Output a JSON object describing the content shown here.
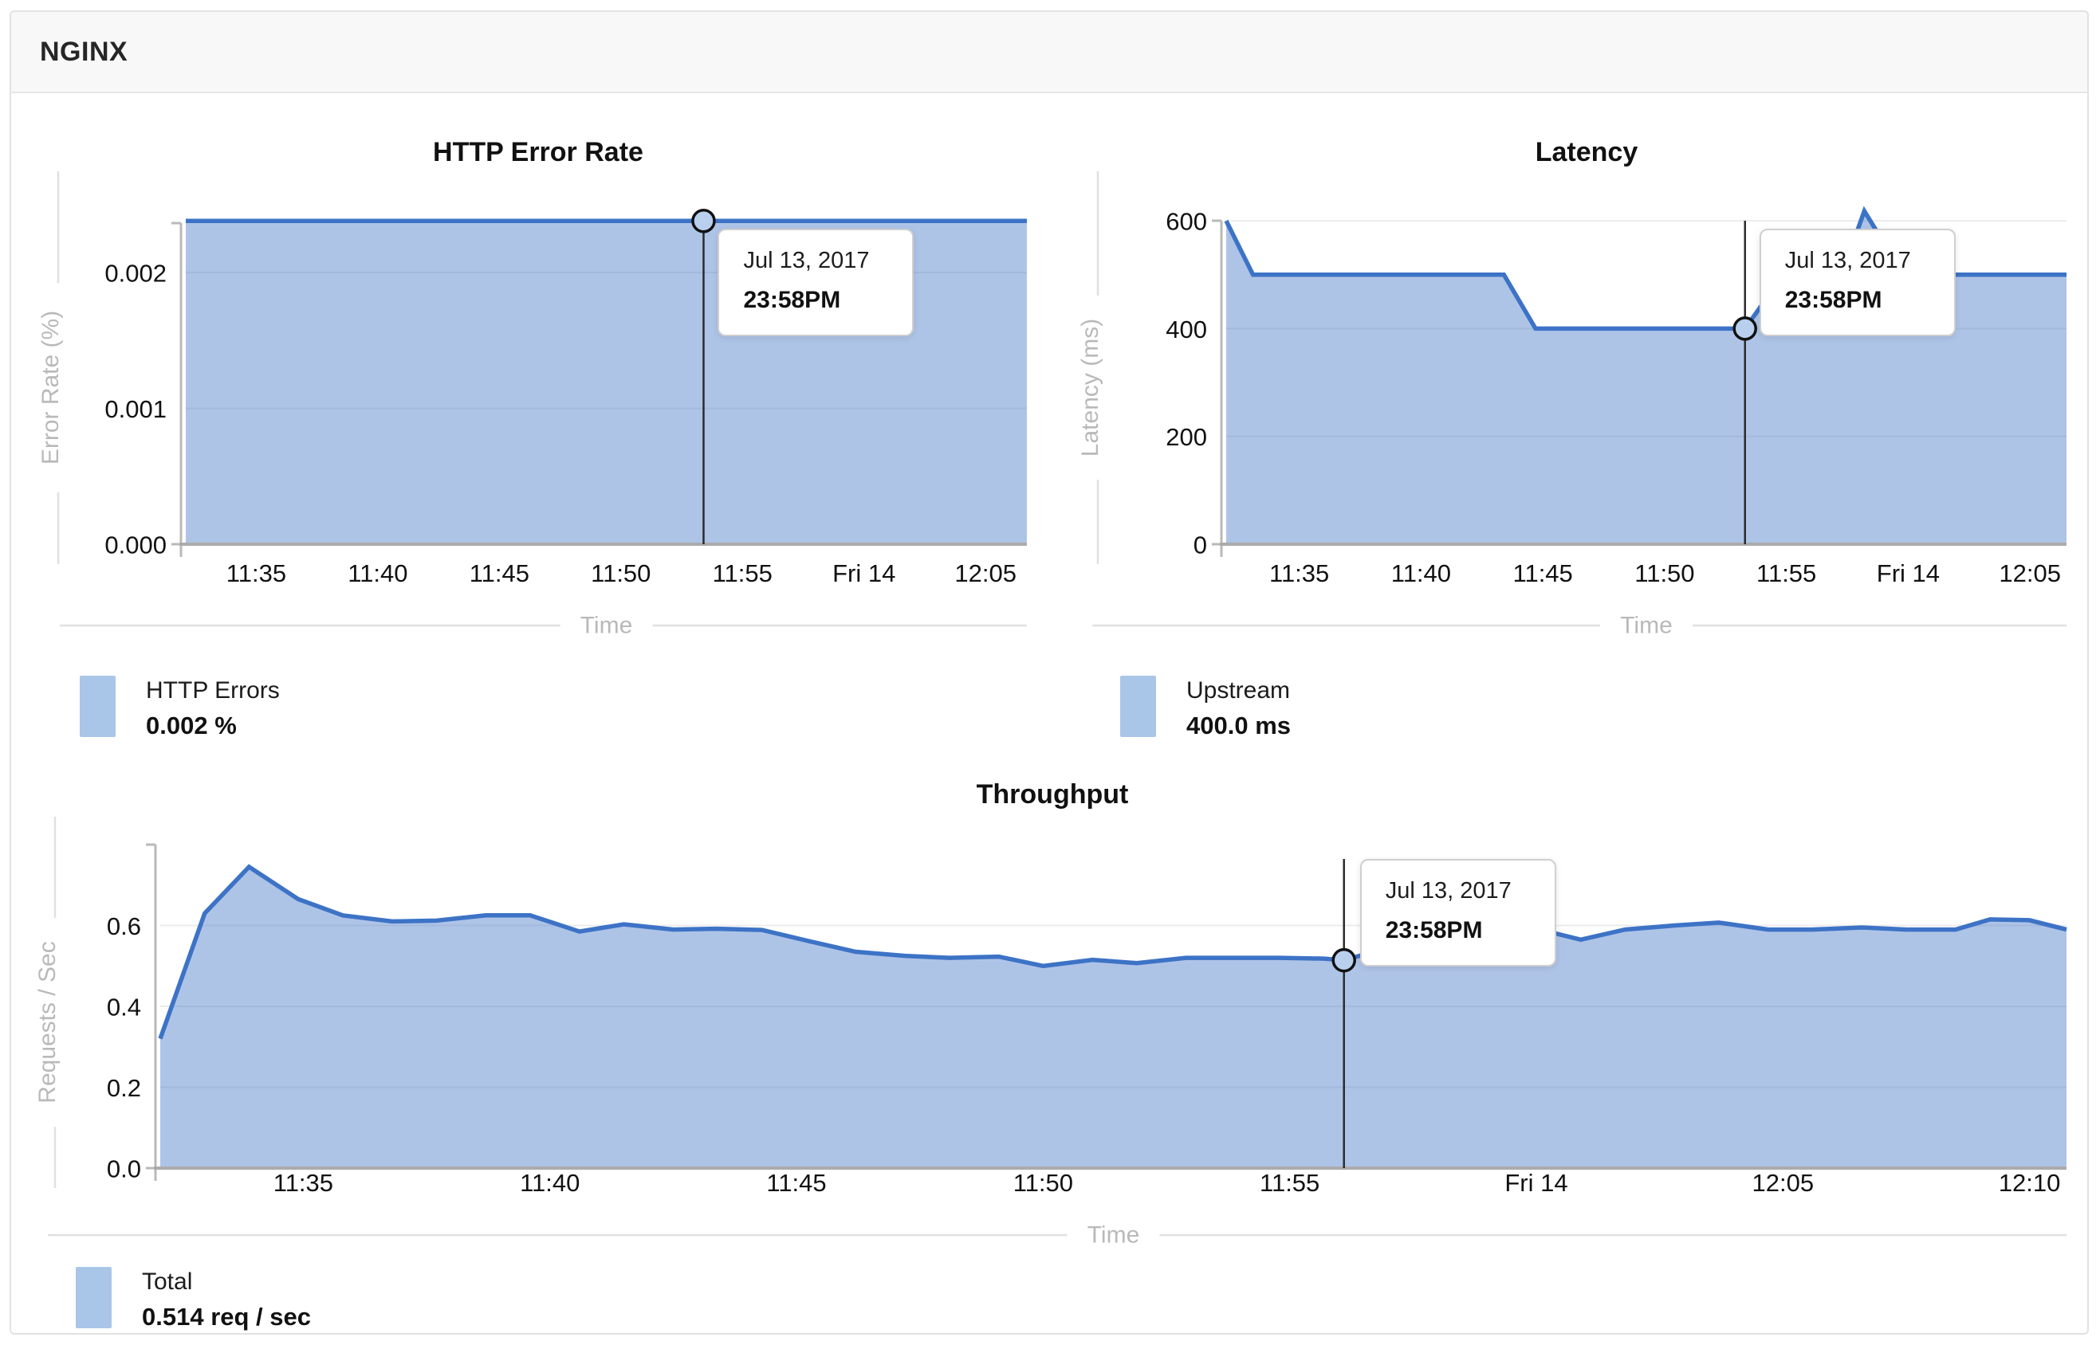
{
  "header": {
    "title": "NGINX"
  },
  "tooltip": {
    "date": "Jul 13, 2017",
    "time": "23:58PM"
  },
  "chart_data": {
    "type": "area",
    "colors": {
      "line": "#3d73c6",
      "fill": "#3d73c6",
      "fill_opacity": 0.42,
      "grid": "#ececec",
      "baseline": "#ababab",
      "axis_tick": "#b9b9b9",
      "muted_text": "#b9b9b9",
      "text": "#111111",
      "marker_line": "#2b2b2b",
      "marker_fill": "#b8d0ee"
    },
    "charts": [
      {
        "id": "http-error-rate",
        "title": "HTTP Error Rate",
        "xlabel": "Time",
        "ylabel": "Error Rate (%)",
        "x_domain": [
          2.1,
          36.7
        ],
        "y_domain": [
          0,
          0.00254
        ],
        "x_ticks": [
          {
            "v": 5,
            "label": "11:35"
          },
          {
            "v": 10,
            "label": "11:40"
          },
          {
            "v": 15,
            "label": "11:45"
          },
          {
            "v": 20,
            "label": "11:50"
          },
          {
            "v": 25,
            "label": "11:55"
          },
          {
            "v": 30,
            "label": "Fri 14"
          },
          {
            "v": 35,
            "label": "12:05"
          }
        ],
        "y_ticks": [
          {
            "v": 0,
            "label": "0.000"
          },
          {
            "v": 0.001,
            "label": "0.001"
          },
          {
            "v": 0.002,
            "label": "0.002"
          }
        ],
        "points": [
          [
            2.1,
            0.00238
          ],
          [
            36.7,
            0.00238
          ]
        ],
        "marker": {
          "x": 23.4,
          "y": 0.00238
        },
        "legend": {
          "label": "HTTP Errors",
          "value": "0.002 %"
        }
      },
      {
        "id": "latency",
        "title": "Latency",
        "xlabel": "Time",
        "ylabel": "Latency (ms)",
        "x_domain": [
          2.0,
          36.5
        ],
        "y_domain": [
          0,
          640
        ],
        "x_ticks": [
          {
            "v": 5,
            "label": "11:35"
          },
          {
            "v": 10,
            "label": "11:40"
          },
          {
            "v": 15,
            "label": "11:45"
          },
          {
            "v": 20,
            "label": "11:50"
          },
          {
            "v": 25,
            "label": "11:55"
          },
          {
            "v": 30,
            "label": "Fri 14"
          },
          {
            "v": 35,
            "label": "12:05"
          }
        ],
        "y_ticks": [
          {
            "v": 0,
            "label": "0"
          },
          {
            "v": 200,
            "label": "200"
          },
          {
            "v": 400,
            "label": "400"
          },
          {
            "v": 600,
            "label": "600"
          }
        ],
        "points": [
          [
            2.0,
            600
          ],
          [
            3.1,
            500
          ],
          [
            13.4,
            500
          ],
          [
            14.7,
            400
          ],
          [
            23.3,
            400
          ],
          [
            24.8,
            495
          ],
          [
            26.6,
            415
          ],
          [
            28.2,
            618
          ],
          [
            29.8,
            500
          ],
          [
            36.5,
            500
          ]
        ],
        "marker": {
          "x": 23.3,
          "y": 400
        },
        "legend": {
          "label": "Upstream",
          "value": "400.0 ms"
        }
      },
      {
        "id": "throughput",
        "title": "Throughput",
        "xlabel": "Time",
        "ylabel": "Requests / Sec",
        "x_domain": [
          2.1,
          40.75
        ],
        "y_domain": [
          0,
          0.8
        ],
        "x_ticks": [
          {
            "v": 5,
            "label": "11:35"
          },
          {
            "v": 10,
            "label": "11:40"
          },
          {
            "v": 15,
            "label": "11:45"
          },
          {
            "v": 20,
            "label": "11:50"
          },
          {
            "v": 25,
            "label": "11:55"
          },
          {
            "v": 30,
            "label": "Fri 14"
          },
          {
            "v": 35,
            "label": "12:05"
          },
          {
            "v": 40,
            "label": "12:10"
          }
        ],
        "y_ticks": [
          {
            "v": 0,
            "label": "0.0"
          },
          {
            "v": 0.2,
            "label": "0.2"
          },
          {
            "v": 0.4,
            "label": "0.4"
          },
          {
            "v": 0.6,
            "label": "0.6"
          }
        ],
        "points": [
          [
            2.1,
            0.32
          ],
          [
            3.0,
            0.63
          ],
          [
            3.9,
            0.745
          ],
          [
            4.9,
            0.665
          ],
          [
            5.8,
            0.625
          ],
          [
            6.8,
            0.61
          ],
          [
            7.7,
            0.612
          ],
          [
            8.7,
            0.625
          ],
          [
            9.6,
            0.625
          ],
          [
            10.6,
            0.585
          ],
          [
            11.5,
            0.603
          ],
          [
            12.5,
            0.59
          ],
          [
            13.4,
            0.592
          ],
          [
            14.3,
            0.589
          ],
          [
            15.3,
            0.56
          ],
          [
            16.2,
            0.535
          ],
          [
            17.2,
            0.525
          ],
          [
            18.1,
            0.52
          ],
          [
            19.1,
            0.523
          ],
          [
            20.0,
            0.5
          ],
          [
            21.0,
            0.515
          ],
          [
            21.9,
            0.507
          ],
          [
            22.9,
            0.52
          ],
          [
            23.8,
            0.52
          ],
          [
            24.8,
            0.52
          ],
          [
            25.7,
            0.518
          ],
          [
            26.1,
            0.514
          ],
          [
            27.0,
            0.545
          ],
          [
            28.0,
            0.59
          ],
          [
            29.0,
            0.595
          ],
          [
            29.9,
            0.595
          ],
          [
            30.9,
            0.565
          ],
          [
            31.8,
            0.59
          ],
          [
            32.8,
            0.6
          ],
          [
            33.7,
            0.607
          ],
          [
            34.7,
            0.59
          ],
          [
            35.6,
            0.59
          ],
          [
            36.6,
            0.595
          ],
          [
            37.5,
            0.59
          ],
          [
            38.5,
            0.59
          ],
          [
            39.2,
            0.615
          ],
          [
            40.0,
            0.613
          ],
          [
            40.75,
            0.59
          ]
        ],
        "marker": {
          "x": 26.1,
          "y": 0.514
        },
        "legend": {
          "label": "Total",
          "value": "0.514 req / sec"
        }
      }
    ]
  }
}
